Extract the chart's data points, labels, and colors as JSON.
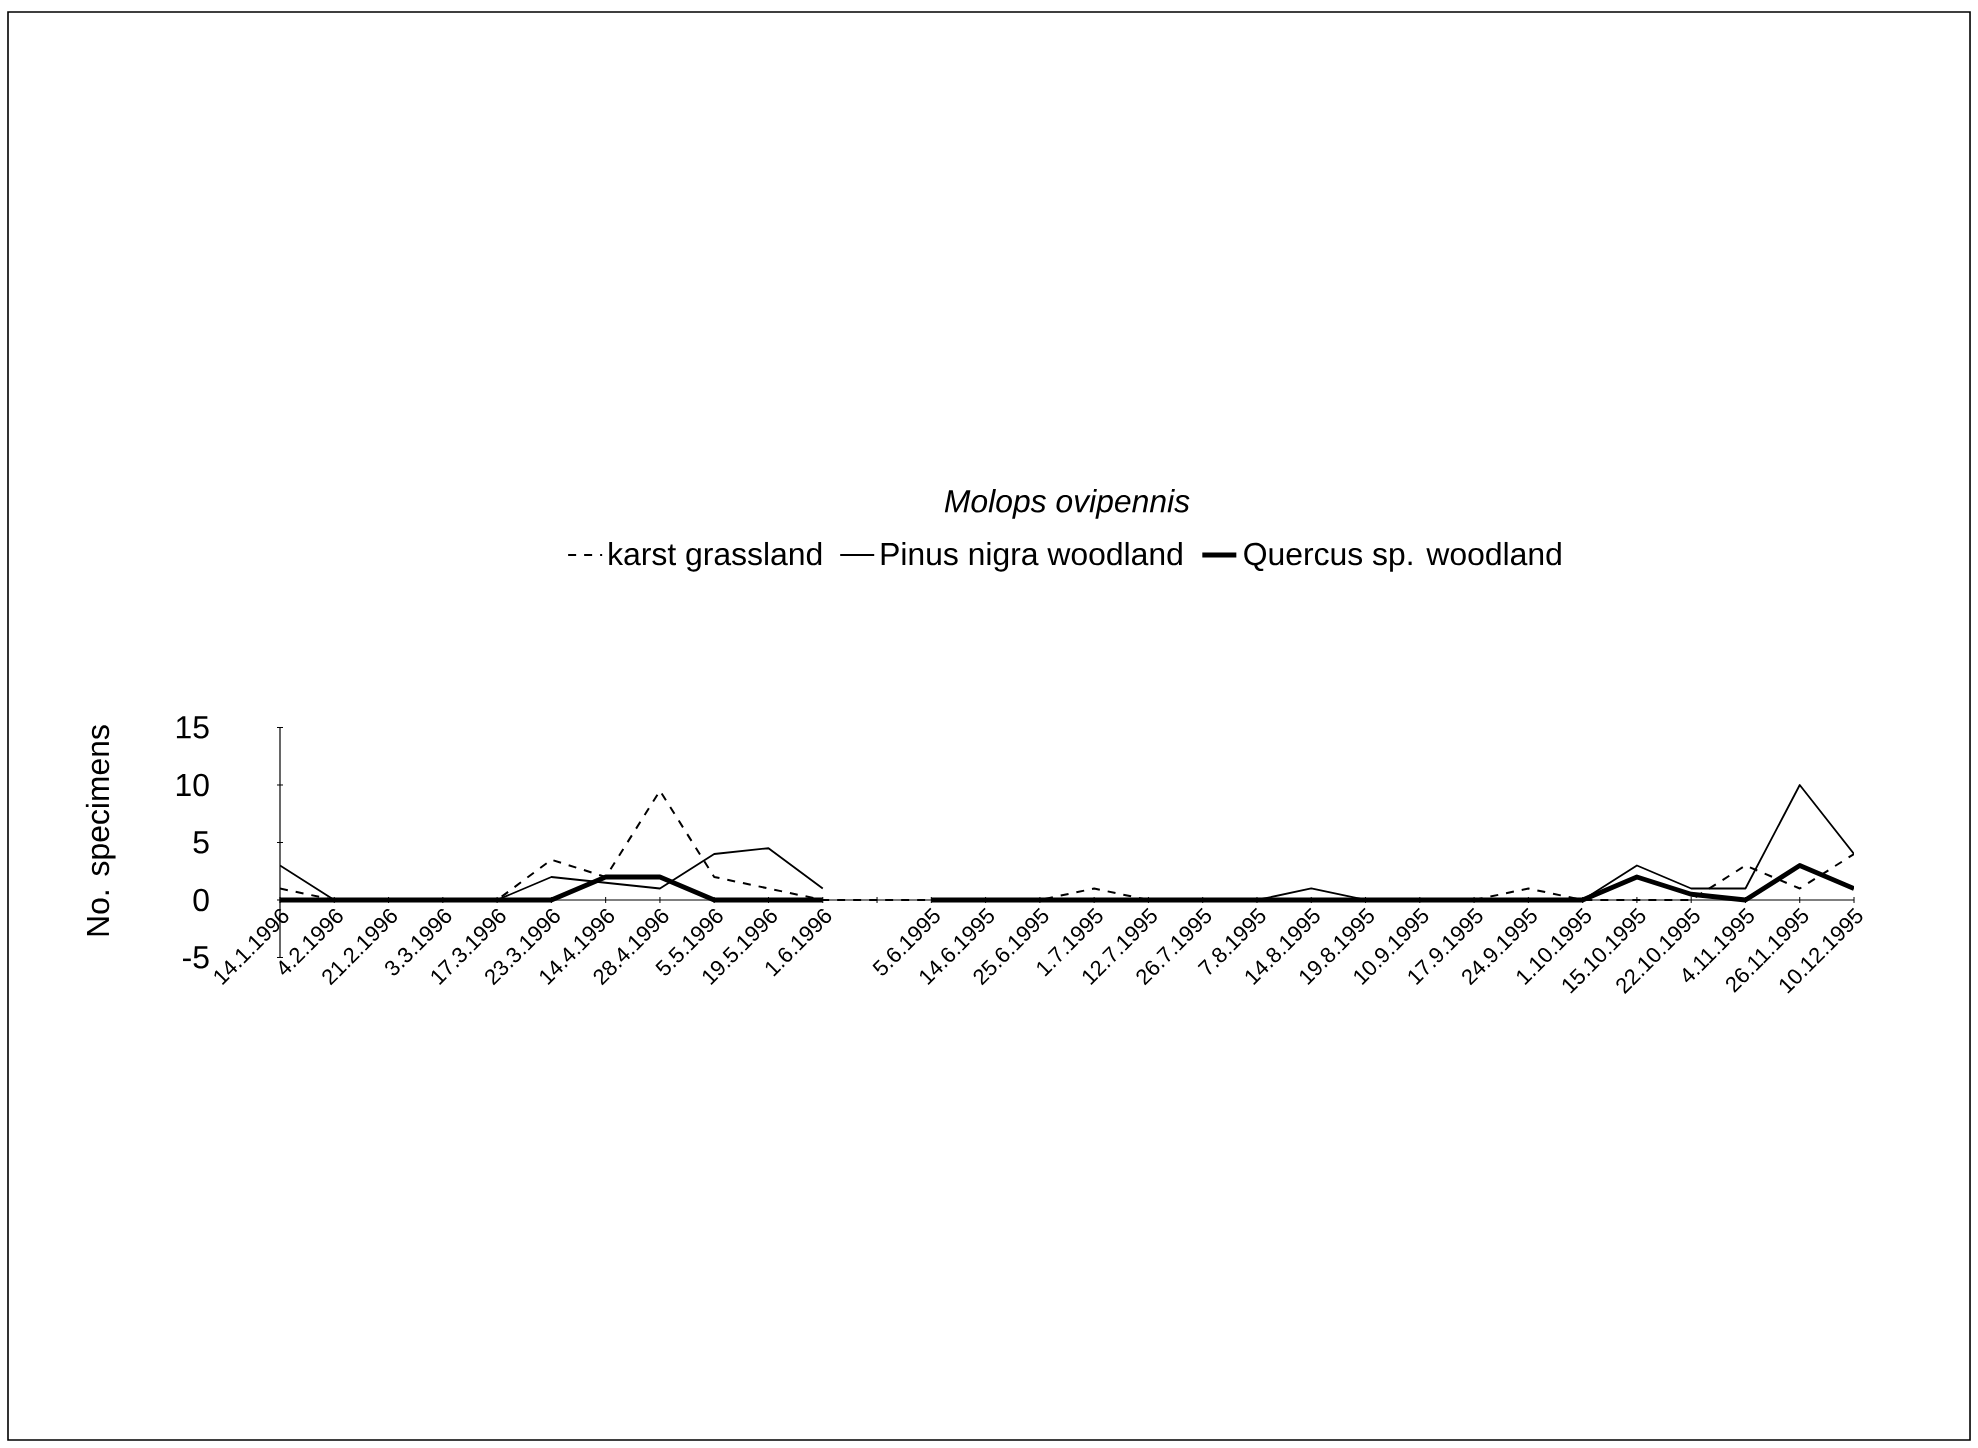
{
  "chart_data": {
    "type": "line",
    "title": "Molops ovipennis",
    "ylabel": "No. specimens",
    "categories": [
      "14.1.1996",
      "4.2.1996",
      "21.2.1996",
      "3.3.1996",
      "17.3.1996",
      "23.3.1996",
      "14.4.1996",
      "28.4.1996",
      "5.5.1996",
      "19.5.1996",
      "1.6.1996",
      null,
      "5.6.1995",
      "14.6.1995",
      "25.6.1995",
      "1.7.1995",
      "12.7.1995",
      "26.7.1995",
      "7.8.1995",
      "14.8.1995",
      "19.8.1995",
      "10.9.1995",
      "17.9.1995",
      "24.9.1995",
      "1.10.1995",
      "15.10.1995",
      "22.10.1995",
      "4.11.1995",
      "26.11.1995",
      "10.12.1995"
    ],
    "series": [
      {
        "name": "karst grassland",
        "color": "#000000",
        "line_style": "dashed",
        "values": [
          1,
          0,
          0,
          0,
          0,
          3.5,
          2,
          9.5,
          2,
          1,
          0,
          0,
          0,
          0,
          0,
          1,
          0,
          0,
          0,
          0,
          0,
          0,
          0,
          1,
          0,
          0,
          0,
          3,
          1,
          4
        ]
      },
      {
        "name": "Pinus nigra woodland",
        "color": "#000000",
        "line_style": "solid",
        "values": [
          3,
          0,
          0,
          0,
          0,
          2,
          1.5,
          1,
          4,
          4.5,
          1,
          null,
          0,
          0,
          0,
          0,
          0,
          0,
          0,
          1,
          0,
          0,
          0,
          0,
          0,
          3,
          1,
          1,
          10,
          4
        ]
      },
      {
        "name": "Quercus sp. woodland",
        "color": "#000000",
        "line_style": "solid",
        "values": [
          0,
          0,
          0,
          0,
          0,
          0,
          2,
          2,
          0,
          0,
          0,
          null,
          0,
          0,
          0,
          0,
          0,
          0,
          0,
          0,
          0,
          0,
          0,
          0,
          0,
          2,
          0.5,
          0,
          3,
          1
        ]
      }
    ],
    "ylim": [
      -5,
      15
    ],
    "yticks": [
      -5,
      0,
      5,
      10,
      15
    ],
    "grid": false,
    "legend": "top"
  }
}
